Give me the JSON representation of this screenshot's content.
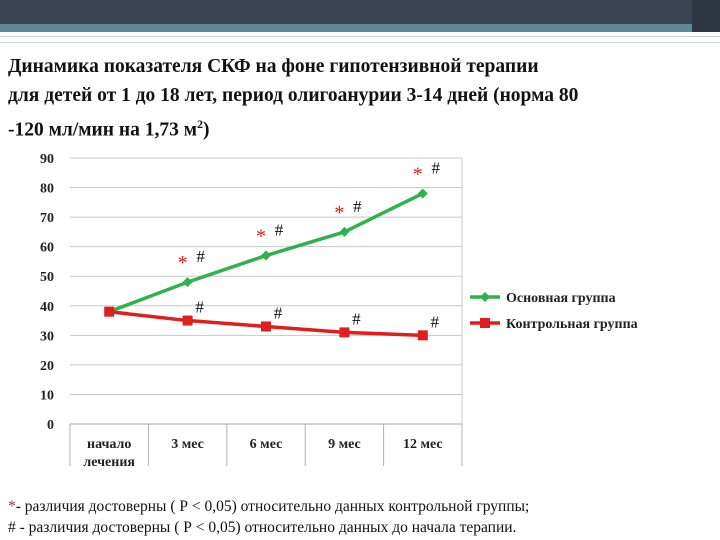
{
  "title": {
    "line1": "Динамика показателя СКФ на фоне гипотензивной терапии",
    "line2": "для детей от 1 до 18 лет, период олигоанурии 3-14 дней (норма 80",
    "line3_main": "-120 мл/мин на 1,73 м",
    "line3_sup": "2",
    "line3_end": ")"
  },
  "colors": {
    "main_group": "#2db34a",
    "control_group": "#e01e1e",
    "asterisk": "#d02020",
    "hash": "#111111",
    "header_bar": "#3a4452",
    "header_accent": "#5b8a96"
  },
  "chart_data": {
    "type": "line",
    "categories": [
      "начало лечения",
      "3 мес",
      "6 мес",
      "9 мес",
      "12 мес"
    ],
    "category_lines": [
      [
        "начало",
        "лечения"
      ],
      [
        "3 мес"
      ],
      [
        "6 мес"
      ],
      [
        "9 мес"
      ],
      [
        "12 мес"
      ]
    ],
    "series": [
      {
        "name": "Основная группа",
        "color": "#2db34a",
        "marker": "diamond",
        "values": [
          38,
          48,
          57,
          65,
          78
        ],
        "annotations": [
          "",
          "* #",
          "* #",
          "* #",
          "* #"
        ]
      },
      {
        "name": "Контрольная группа",
        "color": "#e01e1e",
        "marker": "square",
        "values": [
          38,
          35,
          33,
          31,
          30
        ],
        "annotations": [
          "",
          "#",
          "#",
          "#",
          "#"
        ]
      }
    ],
    "ylim": [
      0,
      90
    ],
    "yticks": [
      0,
      10,
      20,
      30,
      40,
      50,
      60,
      70,
      80,
      90
    ],
    "grid": true,
    "legend_position": "right"
  },
  "footnotes": {
    "line1_mark": "*",
    "line1_text": "- различия достоверны ( Р < 0,05) относительно данных контрольной группы;",
    "line2_mark": "#",
    "line2_text": " - различия достоверны ( Р < 0,05) относительно данных  до начала терапии."
  }
}
